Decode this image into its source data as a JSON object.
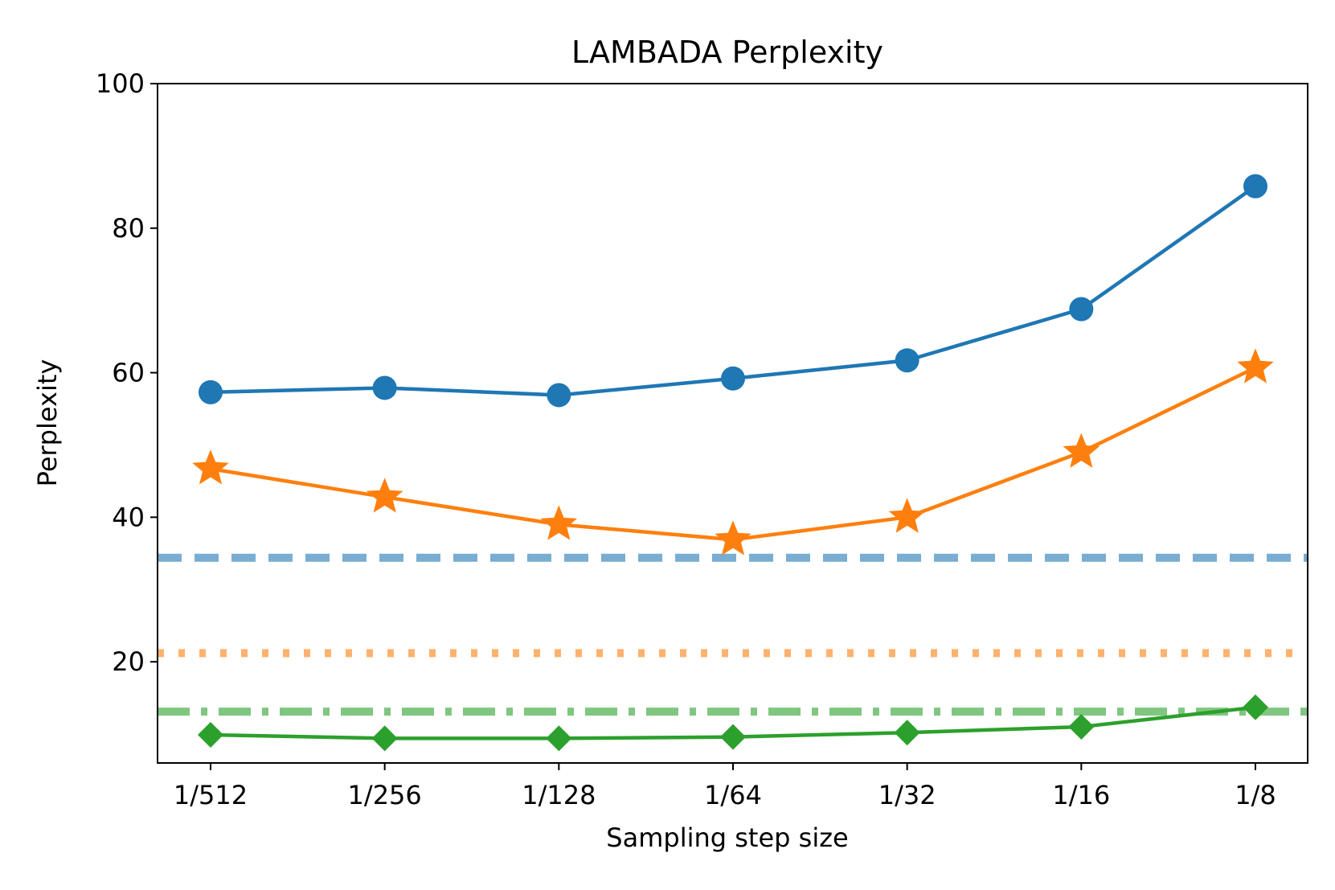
{
  "chart_data": {
    "type": "line",
    "title": "LAMBADA Perplexity",
    "xlabel": "Sampling step size",
    "ylabel": "Perplexity",
    "categories": [
      "1/512",
      "1/256",
      "1/128",
      "1/64",
      "1/32",
      "1/16",
      "1/8"
    ],
    "ylim": [
      6,
      100
    ],
    "yticks": [
      20,
      40,
      60,
      80,
      100
    ],
    "series": [
      {
        "name": "blue-circle",
        "color": "#1f77b4",
        "marker": "circle",
        "values": [
          57.3,
          57.9,
          56.9,
          59.2,
          61.7,
          68.8,
          85.8
        ]
      },
      {
        "name": "orange-star",
        "color": "#ff7f0e",
        "marker": "star",
        "values": [
          46.7,
          42.8,
          39.0,
          36.9,
          40.0,
          49.0,
          60.7
        ]
      },
      {
        "name": "green-diamond",
        "color": "#2ca02c",
        "marker": "diamond",
        "values": [
          9.9,
          9.4,
          9.4,
          9.6,
          10.2,
          11.0,
          13.7
        ]
      }
    ],
    "reference_lines": [
      {
        "name": "blue-dashed",
        "color": "#1f77b4",
        "style": "dashed",
        "value": 34.4
      },
      {
        "name": "orange-dotted",
        "color": "#ff7f0e",
        "style": "dotted",
        "value": 21.2
      },
      {
        "name": "green-dashdot",
        "color": "#2ca02c",
        "style": "dashdot",
        "value": 13.1
      }
    ]
  }
}
